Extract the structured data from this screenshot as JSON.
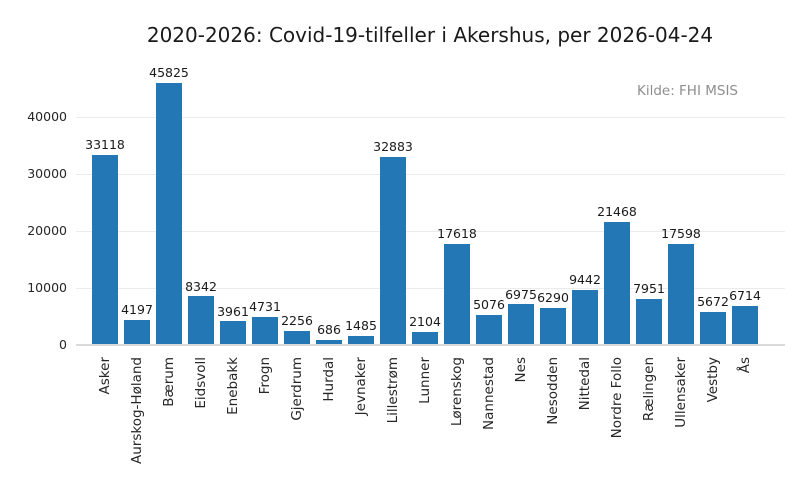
{
  "chart_data": {
    "type": "bar",
    "title": "2020-2026: Covid-19-tilfeller i Akershus, per 2026-04-24",
    "source": "Kilde: FHI MSIS",
    "categories": [
      "Asker",
      "Aurskog-Høland",
      "Bærum",
      "Eidsvoll",
      "Enebakk",
      "Frogn",
      "Gjerdrum",
      "Hurdal",
      "Jevnaker",
      "Lillestrøm",
      "Lunner",
      "Lørenskog",
      "Nannestad",
      "Nes",
      "Nesodden",
      "Nittedal",
      "Nordre Follo",
      "Rælingen",
      "Ullensaker",
      "Vestby",
      "Ås"
    ],
    "values": [
      33118,
      4197,
      45825,
      8342,
      3961,
      4731,
      2256,
      686,
      1485,
      32883,
      2104,
      17618,
      5076,
      6975,
      6290,
      9442,
      21468,
      7951,
      17598,
      5672,
      6714
    ],
    "xlabel": "",
    "ylabel": "",
    "yticks": [
      0,
      10000,
      20000,
      30000,
      40000
    ],
    "ylim": [
      0,
      47000
    ],
    "grid": true,
    "legend": false,
    "bar_label_format": "integer",
    "colors": {
      "bar": "#2277b4",
      "grid": "#ebebeb",
      "axis_line": "#d9d9d9",
      "tick_text": "#262626",
      "value_text": "#1a1a1a",
      "title_text": "#1a1a1a",
      "source_text": "#8e8e8e"
    }
  }
}
